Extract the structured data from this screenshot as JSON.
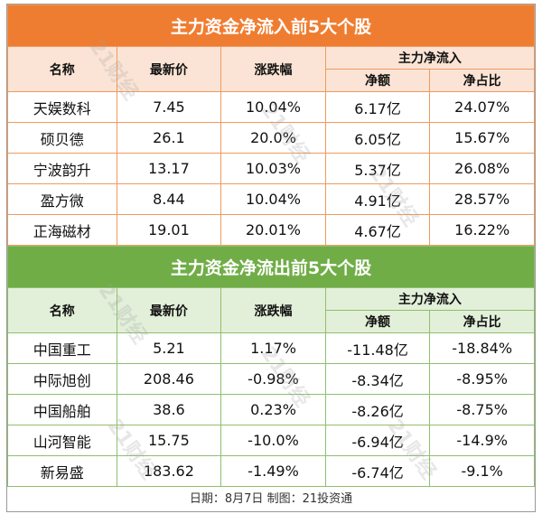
{
  "tables": [
    {
      "title": "主力资金净流入前5大个股",
      "header": [
        "名称",
        "最新价",
        "涨跌幅",
        "主力净流入",
        "净额",
        "净占比"
      ],
      "rows": [
        [
          "天娱数科",
          "7.45",
          "10.04%",
          "6.17亿",
          "24.07%"
        ],
        [
          "硕贝德",
          "26.1",
          "20.0%",
          "6.05亿",
          "15.67%"
        ],
        [
          "宁波韵升",
          "13.17",
          "10.03%",
          "5.37亿",
          "26.08%"
        ],
        [
          "盈方微",
          "8.44",
          "10.04%",
          "4.91亿",
          "28.57%"
        ],
        [
          "正海磁材",
          "19.01",
          "20.01%",
          "4.67亿",
          "16.22%"
        ]
      ]
    },
    {
      "title": "主力资金净流出前5大个股",
      "header": [
        "名称",
        "最新价",
        "涨跌幅",
        "主力净流入",
        "净额",
        "净占比"
      ],
      "rows": [
        [
          "中国重工",
          "5.21",
          "1.17%",
          "-11.48亿",
          "-18.84%"
        ],
        [
          "中际旭创",
          "208.46",
          "-0.98%",
          "-8.34亿",
          "-8.95%"
        ],
        [
          "中国船舶",
          "38.6",
          "0.23%",
          "-8.26亿",
          "-8.75%"
        ],
        [
          "山河智能",
          "15.75",
          "-10.0%",
          "-6.94亿",
          "-14.9%"
        ],
        [
          "新易盛",
          "183.62",
          "-1.49%",
          "-6.74亿",
          "-9.1%"
        ]
      ]
    }
  ],
  "watermark": "21财经",
  "footer": "日期：8月7日 制图：21投资通"
}
